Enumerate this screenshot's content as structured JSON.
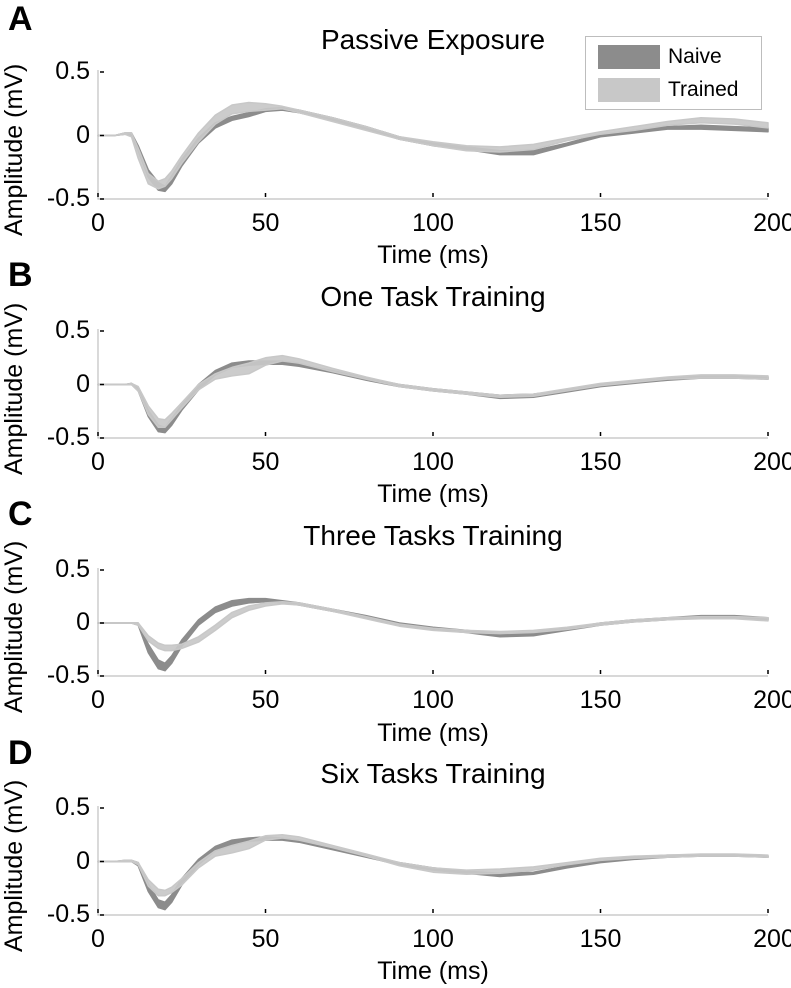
{
  "figure": {
    "legend": {
      "items": [
        {
          "label": "Naive",
          "color": "#8c8c8c"
        },
        {
          "label": "Trained",
          "color": "#c8c8c8"
        }
      ]
    }
  },
  "chart_data": [
    {
      "type": "area",
      "panel_letter": "A",
      "title": "Passive Exposure",
      "xlabel": "Time (ms)",
      "ylabel": "Amplitude (mV)",
      "xlim": [
        0,
        200
      ],
      "ylim": [
        -0.5,
        0.5
      ],
      "xticks": [
        "0",
        "50",
        "100",
        "150",
        "200"
      ],
      "yticks": [
        "0.5",
        "0",
        "-0.5"
      ],
      "legend_position": "upper right",
      "x": [
        0,
        5,
        8,
        10,
        12,
        15,
        18,
        20,
        22,
        25,
        30,
        35,
        40,
        45,
        50,
        55,
        60,
        70,
        80,
        90,
        100,
        110,
        120,
        130,
        140,
        150,
        160,
        170,
        180,
        190,
        200
      ],
      "series": [
        {
          "name": "Naive",
          "lower": [
            0,
            0,
            0.01,
            0.0,
            -0.12,
            -0.33,
            -0.43,
            -0.44,
            -0.38,
            -0.24,
            -0.06,
            0.06,
            0.12,
            0.15,
            0.19,
            0.2,
            0.18,
            0.12,
            0.05,
            -0.03,
            -0.08,
            -0.11,
            -0.15,
            -0.15,
            -0.08,
            -0.01,
            0.02,
            0.05,
            0.05,
            0.04,
            0.03
          ],
          "upper": [
            0,
            0,
            0.02,
            0.02,
            -0.08,
            -0.27,
            -0.37,
            -0.4,
            -0.32,
            -0.19,
            -0.02,
            0.1,
            0.15,
            0.18,
            0.21,
            0.22,
            0.2,
            0.14,
            0.07,
            -0.01,
            -0.06,
            -0.09,
            -0.12,
            -0.12,
            -0.06,
            0.01,
            0.04,
            0.07,
            0.08,
            0.07,
            0.06
          ]
        },
        {
          "name": "Trained",
          "lower": [
            0,
            0,
            0.01,
            -0.01,
            -0.18,
            -0.38,
            -0.42,
            -0.4,
            -0.34,
            -0.22,
            -0.05,
            0.09,
            0.17,
            0.19,
            0.2,
            0.21,
            0.18,
            0.11,
            0.04,
            -0.03,
            -0.08,
            -0.12,
            -0.13,
            -0.11,
            -0.04,
            0.01,
            0.04,
            0.08,
            0.1,
            0.09,
            0.06
          ],
          "upper": [
            0,
            0,
            0.02,
            0.02,
            -0.1,
            -0.3,
            -0.36,
            -0.34,
            -0.28,
            -0.16,
            0.02,
            0.16,
            0.24,
            0.26,
            0.25,
            0.23,
            0.2,
            0.14,
            0.07,
            -0.01,
            -0.05,
            -0.08,
            -0.09,
            -0.07,
            -0.02,
            0.03,
            0.07,
            0.11,
            0.14,
            0.13,
            0.1
          ]
        }
      ]
    },
    {
      "type": "area",
      "panel_letter": "B",
      "title": "One Task Training",
      "xlabel": "Time (ms)",
      "ylabel": "Amplitude (mV)",
      "xlim": [
        0,
        200
      ],
      "ylim": [
        -0.5,
        0.5
      ],
      "xticks": [
        "0",
        "50",
        "100",
        "150",
        "200"
      ],
      "yticks": [
        "0.5",
        "0",
        "-0.5"
      ],
      "x": [
        0,
        5,
        8,
        10,
        12,
        15,
        18,
        20,
        22,
        25,
        30,
        35,
        40,
        45,
        50,
        55,
        60,
        70,
        80,
        90,
        100,
        110,
        120,
        130,
        140,
        150,
        160,
        170,
        180,
        190,
        200
      ],
      "series": [
        {
          "name": "Naive",
          "lower": [
            0,
            0,
            0,
            0,
            -0.06,
            -0.3,
            -0.44,
            -0.45,
            -0.38,
            -0.24,
            -0.05,
            0.09,
            0.16,
            0.18,
            0.19,
            0.19,
            0.17,
            0.11,
            0.04,
            -0.02,
            -0.06,
            -0.09,
            -0.13,
            -0.12,
            -0.07,
            -0.02,
            0.01,
            0.04,
            0.06,
            0.06,
            0.05
          ],
          "upper": [
            0,
            0,
            0,
            0.01,
            -0.03,
            -0.24,
            -0.38,
            -0.4,
            -0.32,
            -0.19,
            0.0,
            0.13,
            0.2,
            0.22,
            0.22,
            0.22,
            0.19,
            0.13,
            0.06,
            0.0,
            -0.04,
            -0.07,
            -0.1,
            -0.09,
            -0.05,
            0.0,
            0.03,
            0.06,
            0.08,
            0.08,
            0.07
          ]
        },
        {
          "name": "Trained",
          "lower": [
            0,
            0,
            0,
            0,
            -0.06,
            -0.28,
            -0.4,
            -0.4,
            -0.33,
            -0.22,
            -0.05,
            0.05,
            0.08,
            0.1,
            0.18,
            0.22,
            0.2,
            0.12,
            0.05,
            -0.02,
            -0.06,
            -0.09,
            -0.12,
            -0.11,
            -0.06,
            -0.01,
            0.02,
            0.05,
            0.06,
            0.06,
            0.05
          ],
          "upper": [
            0,
            0,
            0,
            0.01,
            -0.02,
            -0.2,
            -0.32,
            -0.33,
            -0.27,
            -0.17,
            0.0,
            0.1,
            0.16,
            0.2,
            0.25,
            0.27,
            0.24,
            0.15,
            0.07,
            0.0,
            -0.04,
            -0.07,
            -0.1,
            -0.09,
            -0.04,
            0.01,
            0.04,
            0.07,
            0.09,
            0.09,
            0.08
          ]
        }
      ]
    },
    {
      "type": "area",
      "panel_letter": "C",
      "title": "Three Tasks Training",
      "xlabel": "Time (ms)",
      "ylabel": "Amplitude (mV)",
      "xlim": [
        0,
        200
      ],
      "ylim": [
        -0.5,
        0.5
      ],
      "xticks": [
        "0",
        "50",
        "100",
        "150",
        "200"
      ],
      "yticks": [
        "0.5",
        "0",
        "-0.5"
      ],
      "x": [
        0,
        5,
        8,
        10,
        12,
        15,
        18,
        20,
        22,
        25,
        30,
        35,
        40,
        45,
        50,
        55,
        60,
        70,
        80,
        90,
        100,
        110,
        120,
        130,
        140,
        150,
        160,
        170,
        180,
        190,
        200
      ],
      "series": [
        {
          "name": "Naive",
          "lower": [
            0,
            0,
            0,
            0,
            -0.02,
            -0.28,
            -0.43,
            -0.45,
            -0.38,
            -0.22,
            -0.02,
            0.1,
            0.16,
            0.19,
            0.2,
            0.19,
            0.17,
            0.11,
            0.05,
            -0.02,
            -0.06,
            -0.09,
            -0.13,
            -0.12,
            -0.07,
            -0.02,
            0.01,
            0.03,
            0.05,
            0.05,
            0.03
          ],
          "upper": [
            0,
            0,
            0,
            0,
            0.0,
            -0.2,
            -0.35,
            -0.38,
            -0.31,
            -0.16,
            0.03,
            0.15,
            0.21,
            0.23,
            0.23,
            0.21,
            0.19,
            0.13,
            0.07,
            0.0,
            -0.04,
            -0.07,
            -0.1,
            -0.09,
            -0.05,
            0.0,
            0.03,
            0.05,
            0.07,
            0.07,
            0.05
          ]
        },
        {
          "name": "Trained",
          "lower": [
            0,
            0,
            0,
            0,
            -0.02,
            -0.17,
            -0.24,
            -0.26,
            -0.26,
            -0.24,
            -0.18,
            -0.07,
            0.05,
            0.12,
            0.16,
            0.18,
            0.17,
            0.11,
            0.04,
            -0.03,
            -0.07,
            -0.09,
            -0.1,
            -0.09,
            -0.06,
            -0.02,
            0.01,
            0.03,
            0.04,
            0.04,
            0.02
          ],
          "upper": [
            0,
            0,
            0,
            0,
            0.0,
            -0.12,
            -0.19,
            -0.21,
            -0.21,
            -0.2,
            -0.13,
            -0.02,
            0.1,
            0.16,
            0.19,
            0.2,
            0.19,
            0.13,
            0.06,
            -0.01,
            -0.05,
            -0.07,
            -0.08,
            -0.07,
            -0.04,
            0.0,
            0.03,
            0.05,
            0.06,
            0.06,
            0.05
          ]
        }
      ]
    },
    {
      "type": "area",
      "panel_letter": "D",
      "title": "Six Tasks Training",
      "xlabel": "Time (ms)",
      "ylabel": "Amplitude (mV)",
      "xlim": [
        0,
        200
      ],
      "ylim": [
        -0.5,
        0.5
      ],
      "xticks": [
        "0",
        "50",
        "100",
        "150",
        "200"
      ],
      "yticks": [
        "0.5",
        "0",
        "-0.5"
      ],
      "x": [
        0,
        5,
        8,
        10,
        12,
        15,
        18,
        20,
        22,
        25,
        30,
        35,
        40,
        45,
        50,
        55,
        60,
        70,
        80,
        90,
        100,
        110,
        120,
        130,
        140,
        150,
        160,
        170,
        180,
        190,
        200
      ],
      "series": [
        {
          "name": "Naive",
          "lower": [
            0,
            0,
            0,
            0,
            -0.04,
            -0.28,
            -0.43,
            -0.45,
            -0.38,
            -0.22,
            -0.03,
            0.1,
            0.16,
            0.19,
            0.2,
            0.2,
            0.18,
            0.11,
            0.04,
            -0.03,
            -0.08,
            -0.11,
            -0.14,
            -0.12,
            -0.06,
            -0.01,
            0.02,
            0.04,
            0.05,
            0.05,
            0.04
          ],
          "upper": [
            0,
            0,
            0.01,
            0.01,
            -0.01,
            -0.21,
            -0.36,
            -0.38,
            -0.31,
            -0.16,
            0.02,
            0.14,
            0.2,
            0.22,
            0.23,
            0.22,
            0.2,
            0.13,
            0.06,
            -0.01,
            -0.06,
            -0.09,
            -0.11,
            -0.1,
            -0.04,
            0.01,
            0.04,
            0.06,
            0.06,
            0.06,
            0.05
          ]
        },
        {
          "name": "Trained",
          "lower": [
            0,
            0,
            0,
            0,
            -0.03,
            -0.23,
            -0.32,
            -0.32,
            -0.29,
            -0.22,
            -0.06,
            0.05,
            0.08,
            0.12,
            0.2,
            0.22,
            0.2,
            0.13,
            0.05,
            -0.04,
            -0.1,
            -0.12,
            -0.11,
            -0.08,
            -0.03,
            0.01,
            0.03,
            0.04,
            0.05,
            0.05,
            0.04
          ],
          "upper": [
            0,
            0,
            0.01,
            0.01,
            -0.01,
            -0.17,
            -0.26,
            -0.27,
            -0.24,
            -0.16,
            -0.01,
            0.1,
            0.15,
            0.19,
            0.24,
            0.25,
            0.23,
            0.15,
            0.07,
            -0.01,
            -0.06,
            -0.08,
            -0.07,
            -0.05,
            -0.01,
            0.03,
            0.05,
            0.06,
            0.07,
            0.07,
            0.06
          ]
        }
      ]
    }
  ]
}
